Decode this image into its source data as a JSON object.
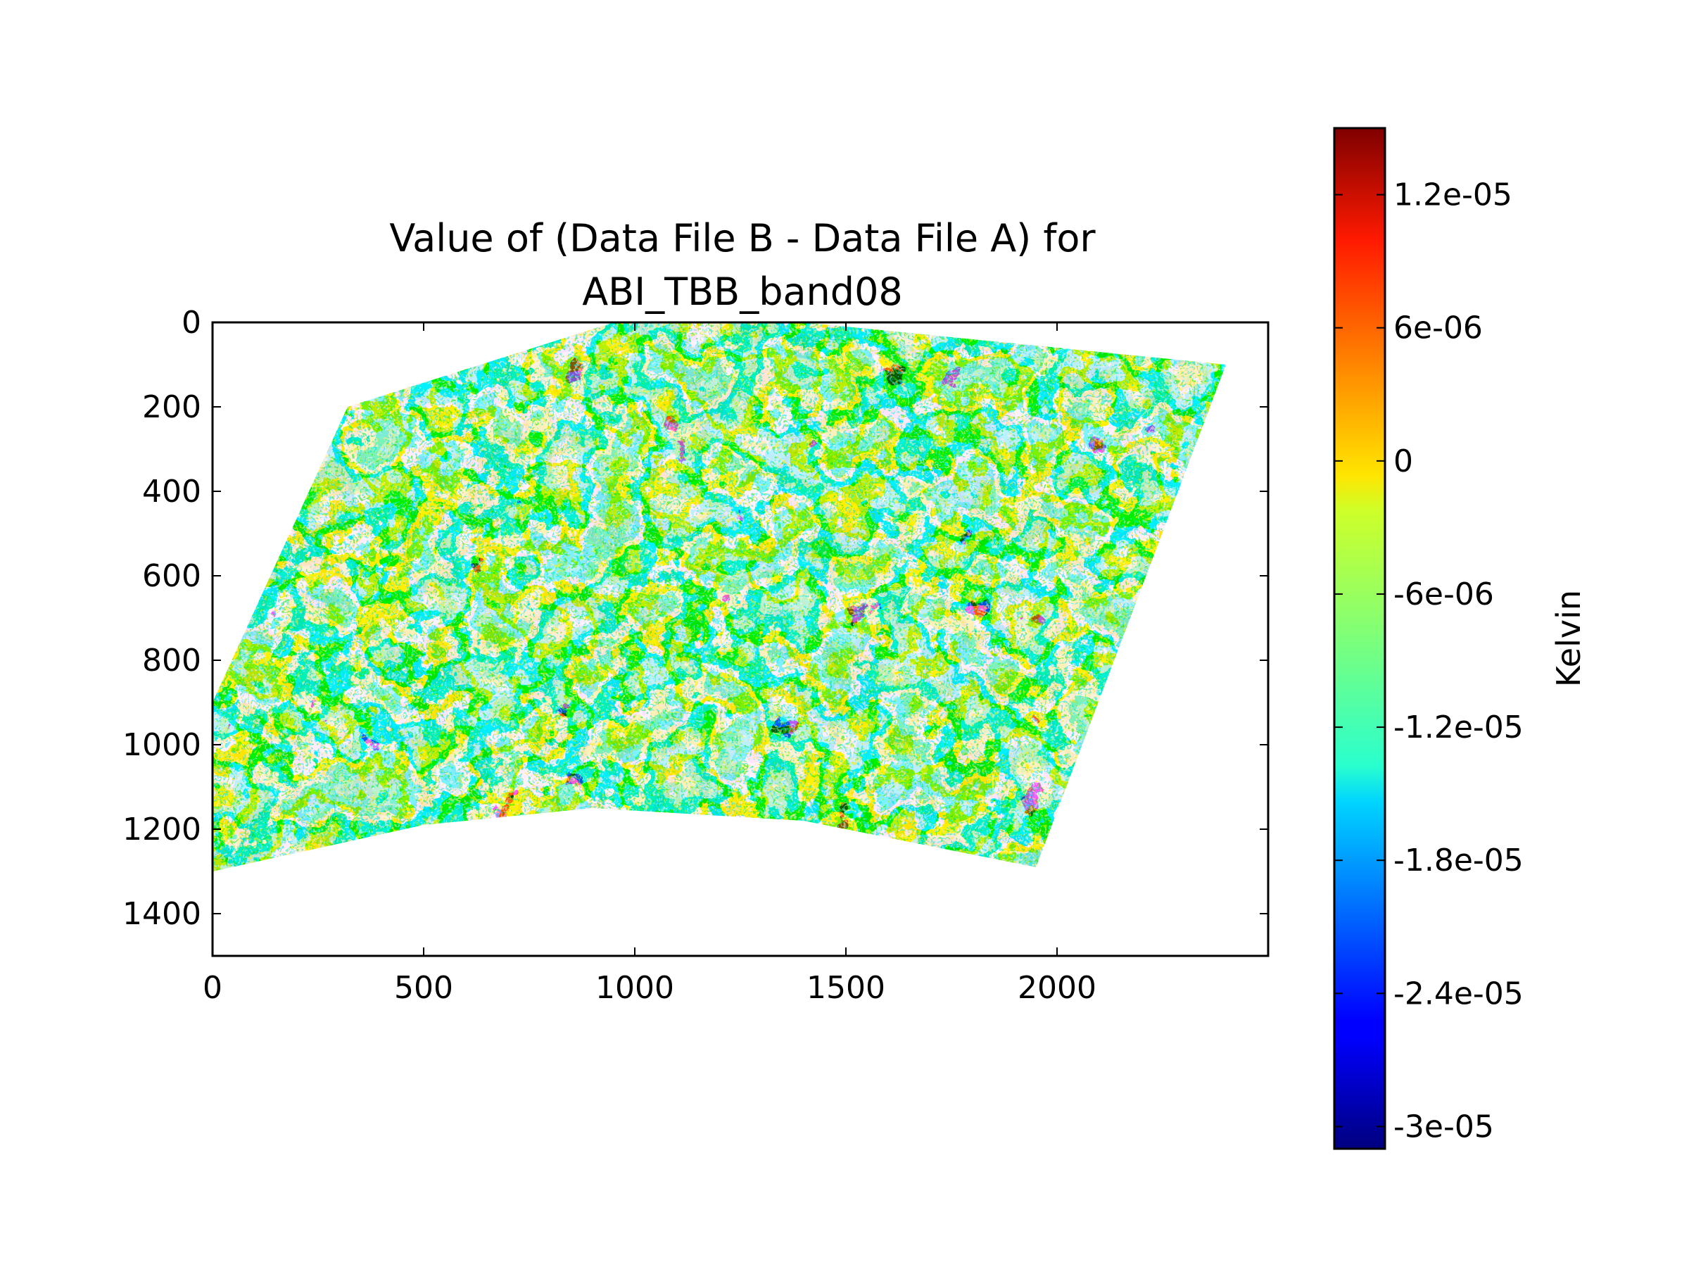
{
  "chart_data": {
    "type": "heatmap",
    "title_line1": "Value of (Data File B - Data File A) for",
    "title_line2": "ABI_TBB_band08",
    "xlabel": "",
    "ylabel": "",
    "xlim": [
      0,
      2500
    ],
    "ylim": [
      1500,
      0
    ],
    "x_ticks": [
      0,
      500,
      1000,
      1500,
      2000
    ],
    "x_tick_labels": [
      "0",
      "500",
      "1000",
      "1500",
      "2000"
    ],
    "y_ticks": [
      0,
      200,
      400,
      600,
      800,
      1000,
      1200,
      1400
    ],
    "y_tick_labels": [
      "0",
      "200",
      "400",
      "600",
      "800",
      "1000",
      "1200",
      "1400"
    ],
    "grid": false,
    "colormap": "jet",
    "colorbar": {
      "label": "Kelvin",
      "vmin": -3.1e-05,
      "vmax": 1.5e-05,
      "ticks": [
        1.2e-05,
        6e-06,
        0,
        -6e-06,
        -1.2e-05,
        -1.8e-05,
        -2.4e-05,
        -3e-05
      ],
      "tick_labels": [
        "1.2e-05",
        "6e-06",
        "0",
        "-6e-06",
        "-1.2e-05",
        "-1.8e-05",
        "-2.4e-05",
        "-3e-05"
      ]
    },
    "data_footprint": {
      "description_points": [
        [
          0,
          900
        ],
        [
          320,
          200
        ],
        [
          950,
          0
        ],
        [
          1400,
          0
        ],
        [
          2400,
          100
        ],
        [
          1950,
          1290
        ],
        [
          1400,
          1180
        ],
        [
          900,
          1150
        ],
        [
          500,
          1190
        ],
        [
          0,
          1300
        ]
      ]
    },
    "dominant_colors": [
      "#ffe000",
      "#00c8ff",
      "#7fe07a",
      "#30d8a8",
      "#cc1010",
      "#102080"
    ]
  }
}
